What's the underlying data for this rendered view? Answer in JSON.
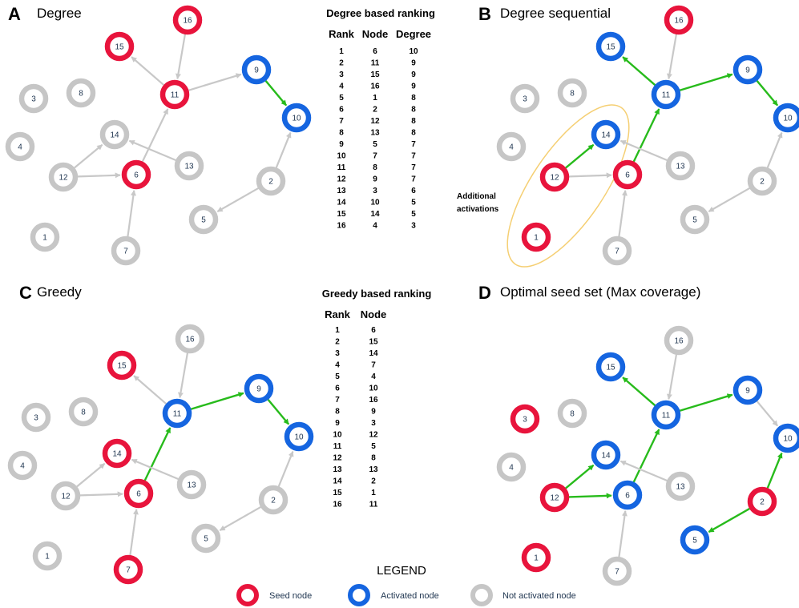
{
  "colors": {
    "seed": "#e8143c",
    "activated": "#1565e0",
    "inactive": "#c6c6c6",
    "edge_active": "#27bb1b",
    "edge_inactive": "#c8c8c8",
    "ellipse": "#f5cf73"
  },
  "panels": [
    {
      "letter": "A",
      "title": "Degree",
      "nodes": [
        {
          "id": "1",
          "state": "inactive"
        },
        {
          "id": "2",
          "state": "inactive"
        },
        {
          "id": "3",
          "state": "inactive"
        },
        {
          "id": "4",
          "state": "inactive"
        },
        {
          "id": "5",
          "state": "inactive"
        },
        {
          "id": "6",
          "state": "seed"
        },
        {
          "id": "7",
          "state": "inactive"
        },
        {
          "id": "8",
          "state": "inactive"
        },
        {
          "id": "9",
          "state": "activated"
        },
        {
          "id": "10",
          "state": "activated"
        },
        {
          "id": "11",
          "state": "seed"
        },
        {
          "id": "12",
          "state": "inactive"
        },
        {
          "id": "13",
          "state": "inactive"
        },
        {
          "id": "14",
          "state": "inactive"
        },
        {
          "id": "15",
          "state": "seed"
        },
        {
          "id": "16",
          "state": "seed"
        }
      ],
      "edges": [
        {
          "from": "11",
          "to": "15",
          "active": false
        },
        {
          "from": "16",
          "to": "11",
          "active": false
        },
        {
          "from": "11",
          "to": "9",
          "active": false
        },
        {
          "from": "9",
          "to": "10",
          "active": true
        },
        {
          "from": "6",
          "to": "11",
          "active": false
        },
        {
          "from": "13",
          "to": "14",
          "active": false
        },
        {
          "from": "12",
          "to": "14",
          "active": false
        },
        {
          "from": "12",
          "to": "6",
          "active": false
        },
        {
          "from": "7",
          "to": "6",
          "active": false
        },
        {
          "from": "2",
          "to": "10",
          "active": false
        },
        {
          "from": "2",
          "to": "5",
          "active": false
        }
      ]
    },
    {
      "letter": "B",
      "title": "Degree sequential",
      "annotation": [
        "Additional",
        "activations"
      ],
      "nodes": [
        {
          "id": "1",
          "state": "seed"
        },
        {
          "id": "2",
          "state": "inactive"
        },
        {
          "id": "3",
          "state": "inactive"
        },
        {
          "id": "4",
          "state": "inactive"
        },
        {
          "id": "5",
          "state": "inactive"
        },
        {
          "id": "6",
          "state": "seed"
        },
        {
          "id": "7",
          "state": "inactive"
        },
        {
          "id": "8",
          "state": "inactive"
        },
        {
          "id": "9",
          "state": "activated"
        },
        {
          "id": "10",
          "state": "activated"
        },
        {
          "id": "11",
          "state": "activated"
        },
        {
          "id": "12",
          "state": "seed"
        },
        {
          "id": "13",
          "state": "inactive"
        },
        {
          "id": "14",
          "state": "activated"
        },
        {
          "id": "15",
          "state": "activated"
        },
        {
          "id": "16",
          "state": "seed"
        }
      ],
      "edges": [
        {
          "from": "11",
          "to": "15",
          "active": true
        },
        {
          "from": "16",
          "to": "11",
          "active": false
        },
        {
          "from": "11",
          "to": "9",
          "active": true
        },
        {
          "from": "9",
          "to": "10",
          "active": true
        },
        {
          "from": "6",
          "to": "11",
          "active": true
        },
        {
          "from": "13",
          "to": "14",
          "active": false
        },
        {
          "from": "12",
          "to": "14",
          "active": true
        },
        {
          "from": "12",
          "to": "6",
          "active": false
        },
        {
          "from": "7",
          "to": "6",
          "active": false
        },
        {
          "from": "2",
          "to": "10",
          "active": false
        },
        {
          "from": "2",
          "to": "5",
          "active": false
        }
      ]
    },
    {
      "letter": "C",
      "title": "Greedy",
      "nodes": [
        {
          "id": "1",
          "state": "inactive"
        },
        {
          "id": "2",
          "state": "inactive"
        },
        {
          "id": "3",
          "state": "inactive"
        },
        {
          "id": "4",
          "state": "inactive"
        },
        {
          "id": "5",
          "state": "inactive"
        },
        {
          "id": "6",
          "state": "seed"
        },
        {
          "id": "7",
          "state": "seed"
        },
        {
          "id": "8",
          "state": "inactive"
        },
        {
          "id": "9",
          "state": "activated"
        },
        {
          "id": "10",
          "state": "activated"
        },
        {
          "id": "11",
          "state": "activated"
        },
        {
          "id": "12",
          "state": "inactive"
        },
        {
          "id": "13",
          "state": "inactive"
        },
        {
          "id": "14",
          "state": "seed"
        },
        {
          "id": "15",
          "state": "seed"
        },
        {
          "id": "16",
          "state": "inactive"
        }
      ],
      "edges": [
        {
          "from": "11",
          "to": "15",
          "active": false
        },
        {
          "from": "16",
          "to": "11",
          "active": false
        },
        {
          "from": "11",
          "to": "9",
          "active": true
        },
        {
          "from": "9",
          "to": "10",
          "active": true
        },
        {
          "from": "6",
          "to": "11",
          "active": true
        },
        {
          "from": "13",
          "to": "14",
          "active": false
        },
        {
          "from": "12",
          "to": "14",
          "active": false
        },
        {
          "from": "12",
          "to": "6",
          "active": false
        },
        {
          "from": "7",
          "to": "6",
          "active": false
        },
        {
          "from": "2",
          "to": "10",
          "active": false
        },
        {
          "from": "2",
          "to": "5",
          "active": false
        }
      ]
    },
    {
      "letter": "D",
      "title": "Optimal seed set  (Max coverage)",
      "nodes": [
        {
          "id": "1",
          "state": "seed"
        },
        {
          "id": "2",
          "state": "seed"
        },
        {
          "id": "3",
          "state": "seed"
        },
        {
          "id": "4",
          "state": "inactive"
        },
        {
          "id": "5",
          "state": "activated"
        },
        {
          "id": "6",
          "state": "activated"
        },
        {
          "id": "7",
          "state": "inactive"
        },
        {
          "id": "8",
          "state": "inactive"
        },
        {
          "id": "9",
          "state": "activated"
        },
        {
          "id": "10",
          "state": "activated"
        },
        {
          "id": "11",
          "state": "activated"
        },
        {
          "id": "12",
          "state": "seed"
        },
        {
          "id": "13",
          "state": "inactive"
        },
        {
          "id": "14",
          "state": "activated"
        },
        {
          "id": "15",
          "state": "activated"
        },
        {
          "id": "16",
          "state": "inactive"
        }
      ],
      "edges": [
        {
          "from": "11",
          "to": "15",
          "active": true
        },
        {
          "from": "16",
          "to": "11",
          "active": false
        },
        {
          "from": "11",
          "to": "9",
          "active": true
        },
        {
          "from": "9",
          "to": "10",
          "active": false
        },
        {
          "from": "6",
          "to": "11",
          "active": true
        },
        {
          "from": "13",
          "to": "14",
          "active": false
        },
        {
          "from": "12",
          "to": "14",
          "active": true
        },
        {
          "from": "12",
          "to": "6",
          "active": true
        },
        {
          "from": "7",
          "to": "6",
          "active": false
        },
        {
          "from": "2",
          "to": "10",
          "active": true
        },
        {
          "from": "2",
          "to": "5",
          "active": true
        }
      ]
    }
  ],
  "degree_table": {
    "title": "Degree based ranking",
    "headers": [
      "Rank",
      "Node",
      "Degree"
    ],
    "rows": [
      [
        "1",
        "6",
        "10"
      ],
      [
        "2",
        "11",
        "9"
      ],
      [
        "3",
        "15",
        "9"
      ],
      [
        "4",
        "16",
        "9"
      ],
      [
        "5",
        "1",
        "8"
      ],
      [
        "6",
        "2",
        "8"
      ],
      [
        "7",
        "12",
        "8"
      ],
      [
        "8",
        "13",
        "8"
      ],
      [
        "9",
        "5",
        "7"
      ],
      [
        "10",
        "7",
        "7"
      ],
      [
        "11",
        "8",
        "7"
      ],
      [
        "12",
        "9",
        "7"
      ],
      [
        "13",
        "3",
        "6"
      ],
      [
        "14",
        "10",
        "5"
      ],
      [
        "15",
        "14",
        "5"
      ],
      [
        "16",
        "4",
        "3"
      ]
    ]
  },
  "greedy_table": {
    "title": "Greedy based ranking",
    "headers": [
      "Rank",
      "Node"
    ],
    "rows": [
      [
        "1",
        "6"
      ],
      [
        "2",
        "15"
      ],
      [
        "3",
        "14"
      ],
      [
        "4",
        "7"
      ],
      [
        "5",
        "4"
      ],
      [
        "6",
        "10"
      ],
      [
        "7",
        "16"
      ],
      [
        "8",
        "9"
      ],
      [
        "9",
        "3"
      ],
      [
        "10",
        "12"
      ],
      [
        "11",
        "5"
      ],
      [
        "12",
        "8"
      ],
      [
        "13",
        "13"
      ],
      [
        "14",
        "2"
      ],
      [
        "15",
        "1"
      ],
      [
        "16",
        "11"
      ]
    ]
  },
  "legend": {
    "title": "LEGEND",
    "items": [
      {
        "state": "seed",
        "label": "Seed node"
      },
      {
        "state": "activated",
        "label": "Activated node"
      },
      {
        "state": "inactive",
        "label": "Not activated node"
      }
    ]
  }
}
